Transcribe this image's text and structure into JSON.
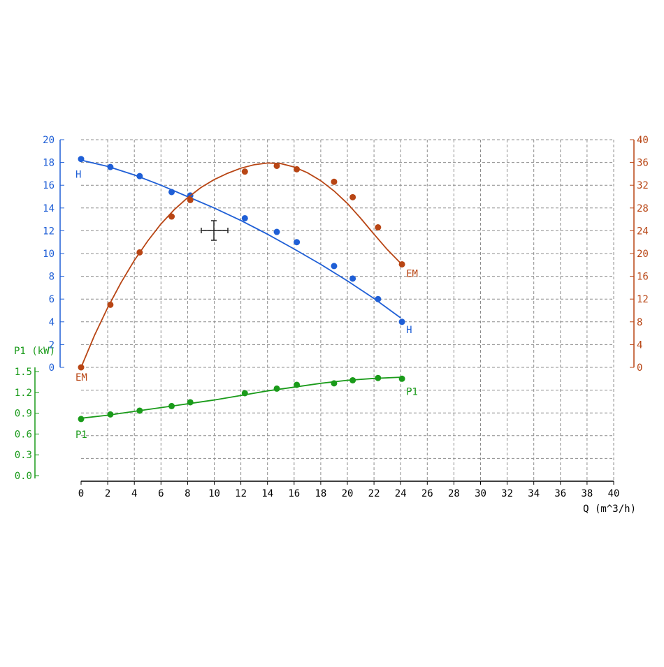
{
  "chart_data": {
    "type": "line",
    "x_axis": {
      "label": "Q (m^3/h)",
      "range": [
        0,
        40
      ],
      "ticks": [
        "0",
        "2",
        "4",
        "6",
        "8",
        "10",
        "12",
        "14",
        "16",
        "18",
        "20",
        "22",
        "24",
        "26",
        "28",
        "30",
        "32",
        "34",
        "36",
        "38",
        "40"
      ]
    },
    "y_axes": [
      {
        "id": "H",
        "side": "left",
        "color": "#1f5fd6",
        "range": [
          0,
          20
        ],
        "ticks": [
          "0",
          "2",
          "4",
          "6",
          "8",
          "10",
          "12",
          "14",
          "16",
          "18",
          "20"
        ]
      },
      {
        "id": "EM",
        "side": "right",
        "color": "#b84514",
        "range": [
          0,
          40
        ],
        "ticks": [
          "0",
          "4",
          "8",
          "12",
          "16",
          "20",
          "24",
          "28",
          "32",
          "36",
          "40"
        ]
      },
      {
        "id": "P1",
        "side": "left-lower",
        "label": "P1 (kW)",
        "color": "#1a9b1a",
        "range": [
          0,
          1.5
        ],
        "ticks": [
          "0.0",
          "0.3",
          "0.6",
          "0.9",
          "1.2",
          "1.5"
        ]
      }
    ],
    "grid": true,
    "series": [
      {
        "name": "H",
        "axis": "H",
        "color": "#1f5fd6",
        "start_label": "H",
        "end_label": "H",
        "points": [
          [
            0,
            18.3
          ],
          [
            2.2,
            17.6
          ],
          [
            4.4,
            16.8
          ],
          [
            6.8,
            15.4
          ],
          [
            8.2,
            15.1
          ],
          [
            12.3,
            13.1
          ],
          [
            14.7,
            11.9
          ],
          [
            16.2,
            11.0
          ],
          [
            19,
            8.9
          ],
          [
            20.4,
            7.8
          ],
          [
            22.3,
            6.0
          ],
          [
            24.1,
            4.0
          ]
        ],
        "curve": [
          [
            0,
            18.2
          ],
          [
            2,
            17.65
          ],
          [
            4,
            16.9
          ],
          [
            6,
            16.0
          ],
          [
            8,
            15.0
          ],
          [
            10,
            14.0
          ],
          [
            12,
            12.9
          ],
          [
            14,
            11.7
          ],
          [
            16,
            10.4
          ],
          [
            18,
            9.05
          ],
          [
            20,
            7.6
          ],
          [
            22,
            6.05
          ],
          [
            24,
            4.35
          ]
        ]
      },
      {
        "name": "EM",
        "axis": "EM",
        "color": "#b84514",
        "start_label": "EM",
        "end_label": "EM",
        "points": [
          [
            0,
            0
          ],
          [
            2.2,
            11
          ],
          [
            4.4,
            20.2
          ],
          [
            6.8,
            26.5
          ],
          [
            8.2,
            29.4
          ],
          [
            12.3,
            34.4
          ],
          [
            14.7,
            35.4
          ],
          [
            16.2,
            34.8
          ],
          [
            19,
            32.6
          ],
          [
            20.4,
            29.9
          ],
          [
            22.3,
            24.6
          ],
          [
            24.1,
            18.1
          ]
        ],
        "curve": [
          [
            0,
            0
          ],
          [
            1,
            5.6
          ],
          [
            2,
            10.5
          ],
          [
            3,
            14.9
          ],
          [
            4,
            18.8
          ],
          [
            5,
            22.2
          ],
          [
            6,
            25.2
          ],
          [
            7,
            27.7
          ],
          [
            8,
            29.8
          ],
          [
            9,
            31.6
          ],
          [
            10,
            33.0
          ],
          [
            11,
            34.1
          ],
          [
            12,
            35.0
          ],
          [
            13,
            35.6
          ],
          [
            14,
            35.9
          ],
          [
            15,
            35.8
          ],
          [
            16,
            35.2
          ],
          [
            17,
            34.2
          ],
          [
            18,
            32.8
          ],
          [
            19,
            31.0
          ],
          [
            20,
            28.8
          ],
          [
            21,
            26.2
          ],
          [
            22,
            23.4
          ],
          [
            23,
            20.7
          ],
          [
            24,
            18.3
          ]
        ]
      },
      {
        "name": "P1",
        "axis": "P1",
        "color": "#1a9b1a",
        "start_label": "P1",
        "end_label": "P1",
        "points": [
          [
            0,
            0.82
          ],
          [
            2.2,
            0.88
          ],
          [
            4.4,
            0.93
          ],
          [
            6.8,
            0.99
          ],
          [
            8.2,
            1.04
          ],
          [
            12.3,
            1.16
          ],
          [
            14.7,
            1.22
          ],
          [
            16.2,
            1.27
          ],
          [
            19,
            1.29
          ],
          [
            20.4,
            1.33
          ],
          [
            22.3,
            1.36
          ],
          [
            24.1,
            1.35
          ]
        ],
        "curve": [
          [
            0,
            0.83
          ],
          [
            2,
            0.87
          ],
          [
            4,
            0.92
          ],
          [
            6,
            0.97
          ],
          [
            8,
            1.02
          ],
          [
            10,
            1.07
          ],
          [
            12,
            1.13
          ],
          [
            14,
            1.19
          ],
          [
            16,
            1.24
          ],
          [
            18,
            1.29
          ],
          [
            20,
            1.33
          ],
          [
            22,
            1.355
          ],
          [
            24,
            1.37
          ]
        ]
      }
    ]
  }
}
